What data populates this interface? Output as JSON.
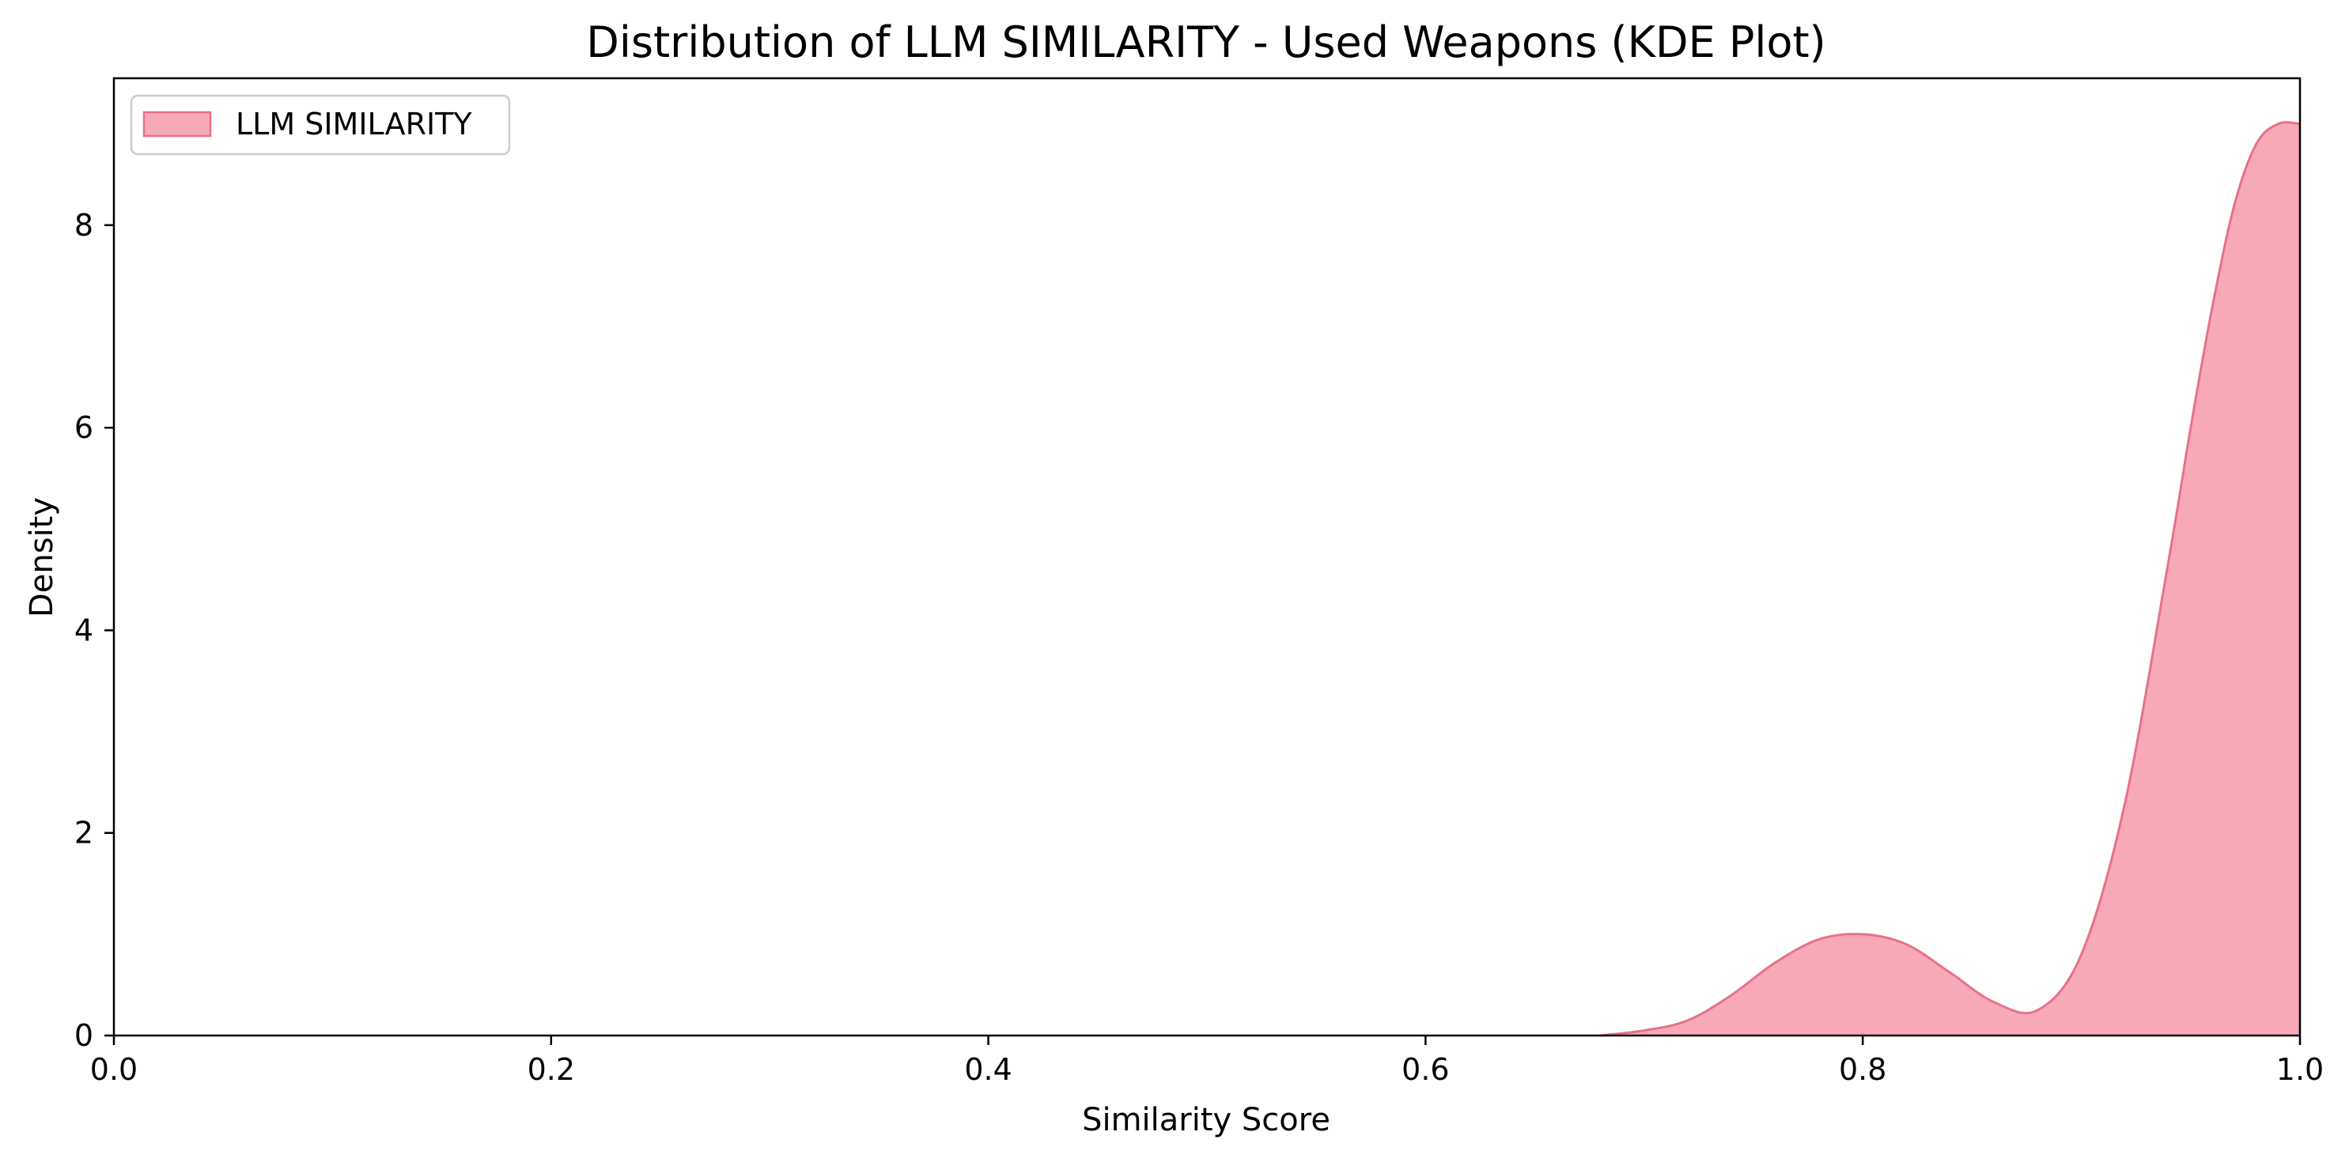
{
  "chart_data": {
    "type": "area",
    "title": "Distribution of LLM SIMILARITY - Used Weapons (KDE Plot)",
    "xlabel": "Similarity Score",
    "ylabel": "Density",
    "xlim": [
      0.0,
      1.0
    ],
    "ylim": [
      0,
      9.45
    ],
    "xticks": [
      0.0,
      0.2,
      0.4,
      0.6,
      0.8,
      1.0
    ],
    "xtick_labels": [
      "0.0",
      "0.2",
      "0.4",
      "0.6",
      "0.8",
      "1.0"
    ],
    "yticks": [
      0,
      2,
      4,
      6,
      8
    ],
    "ytick_labels": [
      "0",
      "2",
      "4",
      "6",
      "8"
    ],
    "grid": false,
    "legend_position": "top-left",
    "series": [
      {
        "name": "LLM SIMILARITY",
        "fill_color": "#f8a9b8",
        "line_color": "#e8708a",
        "x": [
          0.68,
          0.7,
          0.72,
          0.74,
          0.76,
          0.78,
          0.8,
          0.82,
          0.84,
          0.86,
          0.88,
          0.9,
          0.92,
          0.94,
          0.95,
          0.96,
          0.97,
          0.98,
          0.99,
          1.0
        ],
        "y": [
          0.0,
          0.05,
          0.15,
          0.4,
          0.72,
          0.95,
          1.0,
          0.9,
          0.62,
          0.33,
          0.25,
          0.8,
          2.3,
          4.7,
          6.0,
          7.2,
          8.2,
          8.8,
          9.0,
          9.0
        ]
      }
    ]
  }
}
